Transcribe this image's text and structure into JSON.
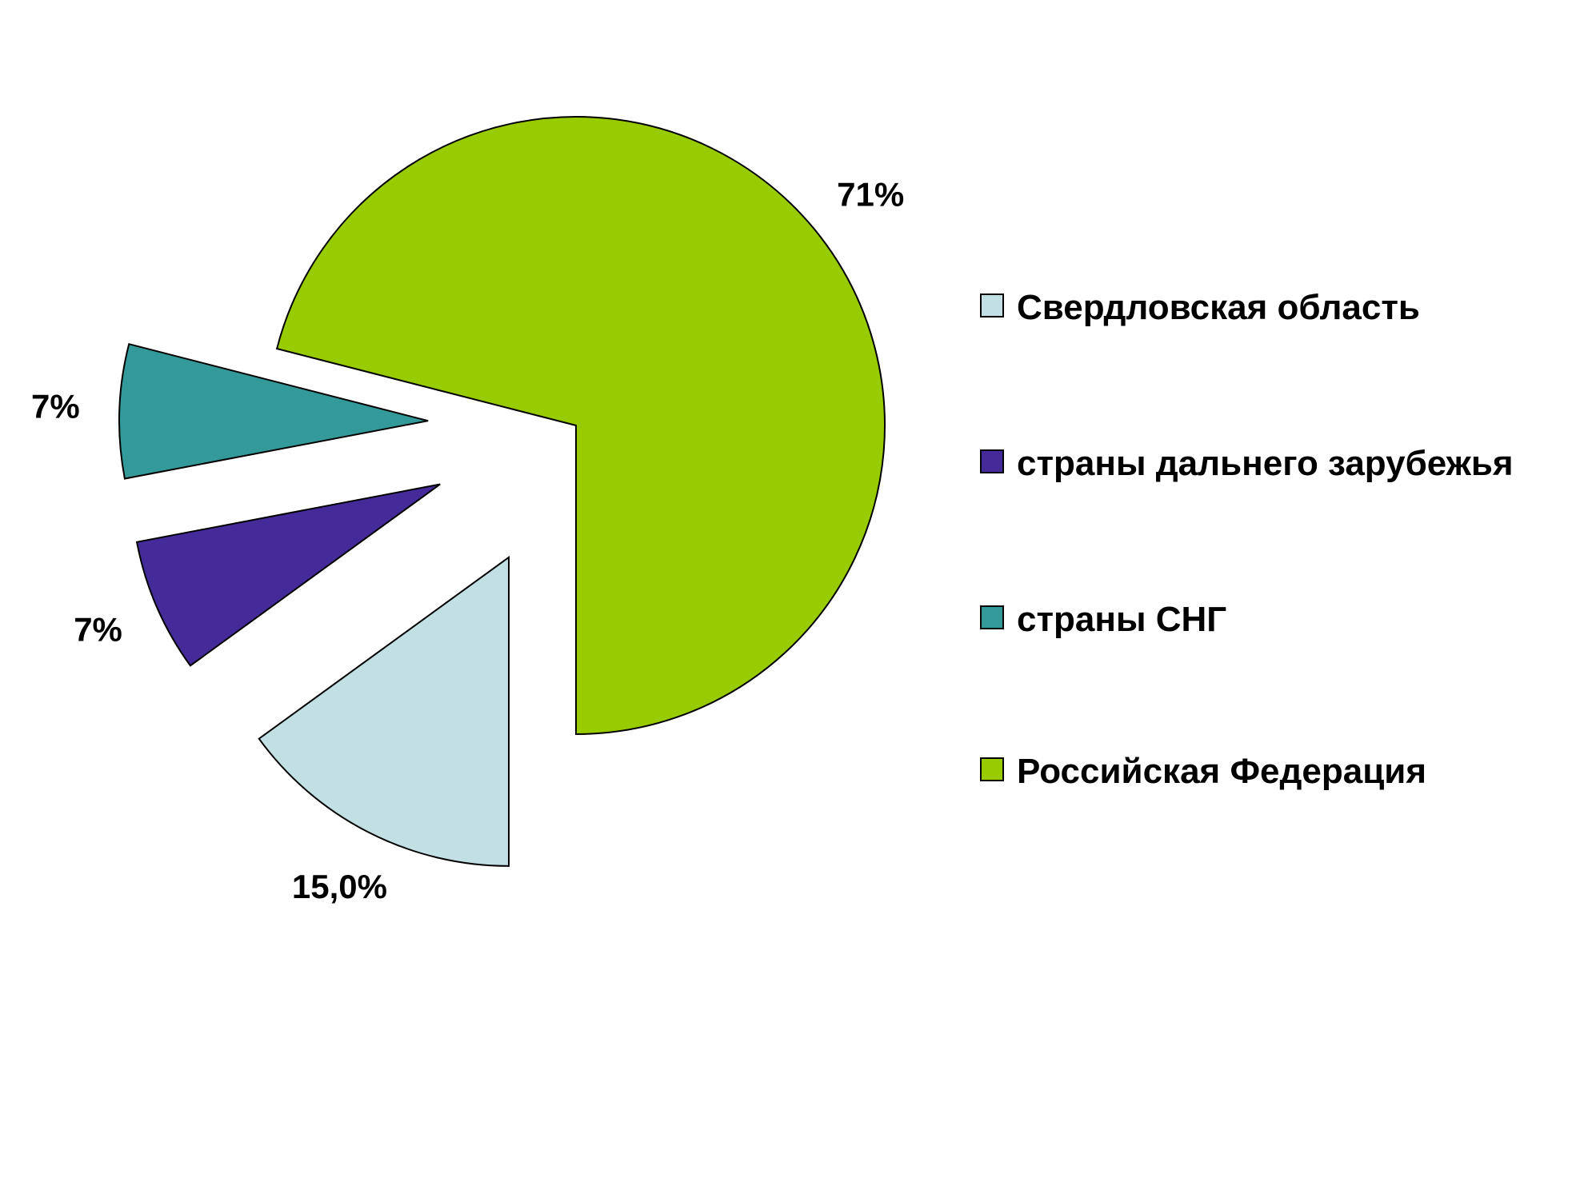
{
  "chart_data": {
    "type": "pie",
    "categories": [
      "Свердловская область",
      "страны дальнего зарубежья",
      "страны СНГ",
      "Российская Федерация"
    ],
    "values": [
      15.0,
      7,
      7,
      71
    ],
    "value_labels": [
      "15,0%",
      "7%",
      "7%",
      "71%"
    ],
    "colors": [
      "#c2dfe4",
      "#452a99",
      "#339999",
      "#99cc00"
    ],
    "legend": "right"
  }
}
